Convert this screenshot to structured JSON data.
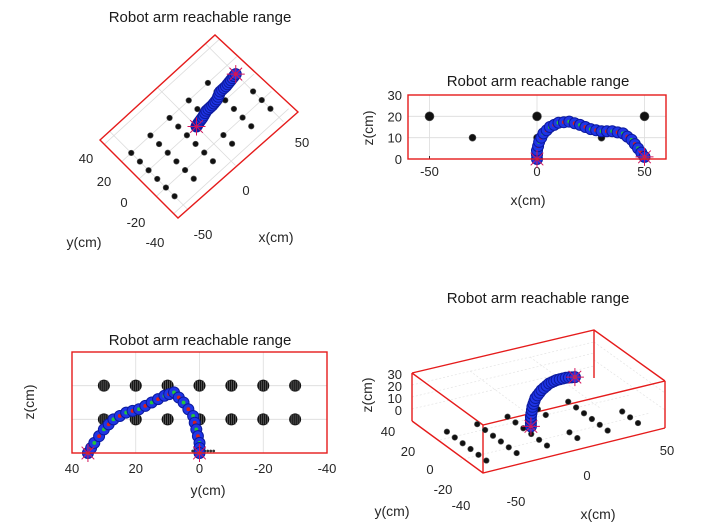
{
  "chart_data": [
    {
      "type": "scatter",
      "view": "3d-top",
      "title": "Robot arm reachable range",
      "xlabel": "x(cm)",
      "ylabel": "y(cm)",
      "xticks": [
        "50",
        "0",
        "-50"
      ],
      "yticks": [
        "40",
        "20",
        "0",
        "-20",
        "-40"
      ],
      "xlim": [
        -60,
        60
      ],
      "ylim": [
        -45,
        45
      ],
      "obstacle_points": [
        {
          "x": -50,
          "y": -30
        },
        {
          "x": -50,
          "y": -20
        },
        {
          "x": -50,
          "y": -10
        },
        {
          "x": -50,
          "y": 0
        },
        {
          "x": -50,
          "y": 10
        },
        {
          "x": -50,
          "y": 20
        },
        {
          "x": -30,
          "y": -30
        },
        {
          "x": -30,
          "y": -20
        },
        {
          "x": -30,
          "y": -10
        },
        {
          "x": -30,
          "y": 0
        },
        {
          "x": -30,
          "y": 10
        },
        {
          "x": -30,
          "y": 20
        },
        {
          "x": -10,
          "y": -30
        },
        {
          "x": -10,
          "y": -20
        },
        {
          "x": -10,
          "y": -10
        },
        {
          "x": -10,
          "y": 0
        },
        {
          "x": -10,
          "y": 10
        },
        {
          "x": -10,
          "y": 20
        },
        {
          "x": 10,
          "y": -30
        },
        {
          "x": 10,
          "y": -20
        },
        {
          "x": 10,
          "y": 10
        },
        {
          "x": 10,
          "y": 20
        },
        {
          "x": 30,
          "y": -30
        },
        {
          "x": 30,
          "y": -20
        },
        {
          "x": 30,
          "y": -10
        },
        {
          "x": 30,
          "y": 0
        },
        {
          "x": 30,
          "y": 10
        },
        {
          "x": 30,
          "y": 20
        },
        {
          "x": 50,
          "y": -30
        },
        {
          "x": 50,
          "y": -20
        },
        {
          "x": 50,
          "y": -10
        }
      ],
      "arm_path": [
        {
          "x": 0,
          "y": 0
        },
        {
          "x": 3,
          "y": 1
        },
        {
          "x": 8,
          "y": 2
        },
        {
          "x": 14,
          "y": 4
        },
        {
          "x": 20,
          "y": 4
        },
        {
          "x": 26,
          "y": 5
        },
        {
          "x": 32,
          "y": 8
        },
        {
          "x": 38,
          "y": 8
        },
        {
          "x": 44,
          "y": 9
        },
        {
          "x": 50,
          "y": 10
        }
      ]
    },
    {
      "type": "scatter",
      "view": "xz",
      "title": "Robot arm reachable range",
      "xlabel": "x(cm)",
      "ylabel": "z(cm)",
      "xticks": [
        -50,
        0,
        50
      ],
      "yticks": [
        0,
        10,
        20,
        30
      ],
      "xlim": [
        -60,
        60
      ],
      "ylim": [
        0,
        30
      ],
      "obstacle_points": [
        {
          "x": -50,
          "z": 20
        },
        {
          "x": -30,
          "z": 10
        },
        {
          "x": 0,
          "z": 20
        },
        {
          "x": 0,
          "z": 10
        },
        {
          "x": 30,
          "z": 10
        },
        {
          "x": 50,
          "z": 20
        }
      ],
      "arm_path": [
        {
          "x": 0,
          "z": 0
        },
        {
          "x": 0,
          "z": 4
        },
        {
          "x": 1,
          "z": 8
        },
        {
          "x": 3,
          "z": 12
        },
        {
          "x": 6,
          "z": 15
        },
        {
          "x": 10,
          "z": 17
        },
        {
          "x": 15,
          "z": 17.5
        },
        {
          "x": 20,
          "z": 16
        },
        {
          "x": 25,
          "z": 14
        },
        {
          "x": 30,
          "z": 13
        },
        {
          "x": 35,
          "z": 13
        },
        {
          "x": 40,
          "z": 12
        },
        {
          "x": 44,
          "z": 9
        },
        {
          "x": 47,
          "z": 5
        },
        {
          "x": 50,
          "z": 1
        }
      ]
    },
    {
      "type": "scatter",
      "view": "yz",
      "title": "Robot arm reachable range",
      "xlabel": "y(cm)",
      "ylabel": "z(cm)",
      "xticks": [
        40,
        20,
        0,
        -20,
        -40
      ],
      "yticks": [],
      "xlim": [
        40,
        -40
      ],
      "ylim": [
        0,
        30
      ],
      "obstacle_points": [
        {
          "y": 30,
          "z": 20
        },
        {
          "y": 20,
          "z": 20
        },
        {
          "y": 10,
          "z": 20
        },
        {
          "y": 0,
          "z": 20
        },
        {
          "y": -10,
          "z": 20
        },
        {
          "y": -20,
          "z": 20
        },
        {
          "y": -30,
          "z": 20
        },
        {
          "y": 30,
          "z": 10
        },
        {
          "y": 20,
          "z": 10
        },
        {
          "y": 10,
          "z": 10
        },
        {
          "y": 0,
          "z": 10
        },
        {
          "y": -10,
          "z": 10
        },
        {
          "y": -20,
          "z": 10
        },
        {
          "y": -30,
          "z": 10
        }
      ],
      "arm_path": [
        {
          "y": 35,
          "z": 0
        },
        {
          "y": 33,
          "z": 3
        },
        {
          "y": 30,
          "z": 7
        },
        {
          "y": 27,
          "z": 10
        },
        {
          "y": 23,
          "z": 12
        },
        {
          "y": 19,
          "z": 13
        },
        {
          "y": 15,
          "z": 15
        },
        {
          "y": 11,
          "z": 17
        },
        {
          "y": 8,
          "z": 18
        },
        {
          "y": 5,
          "z": 15
        },
        {
          "y": 2,
          "z": 11
        },
        {
          "y": 1,
          "z": 7
        },
        {
          "y": 0,
          "z": 3
        },
        {
          "y": 0,
          "z": 0
        }
      ]
    },
    {
      "type": "scatter",
      "view": "3d",
      "title": "Robot arm reachable range",
      "xlabel": "x(cm)",
      "ylabel": "y(cm)",
      "zlabel": "z(cm)",
      "xticks": [
        "-50",
        "0",
        "50"
      ],
      "yticks": [
        "40",
        "20",
        "0",
        "-20",
        "-40"
      ],
      "zticks": [
        "30",
        "20",
        "10",
        "0"
      ]
    }
  ]
}
